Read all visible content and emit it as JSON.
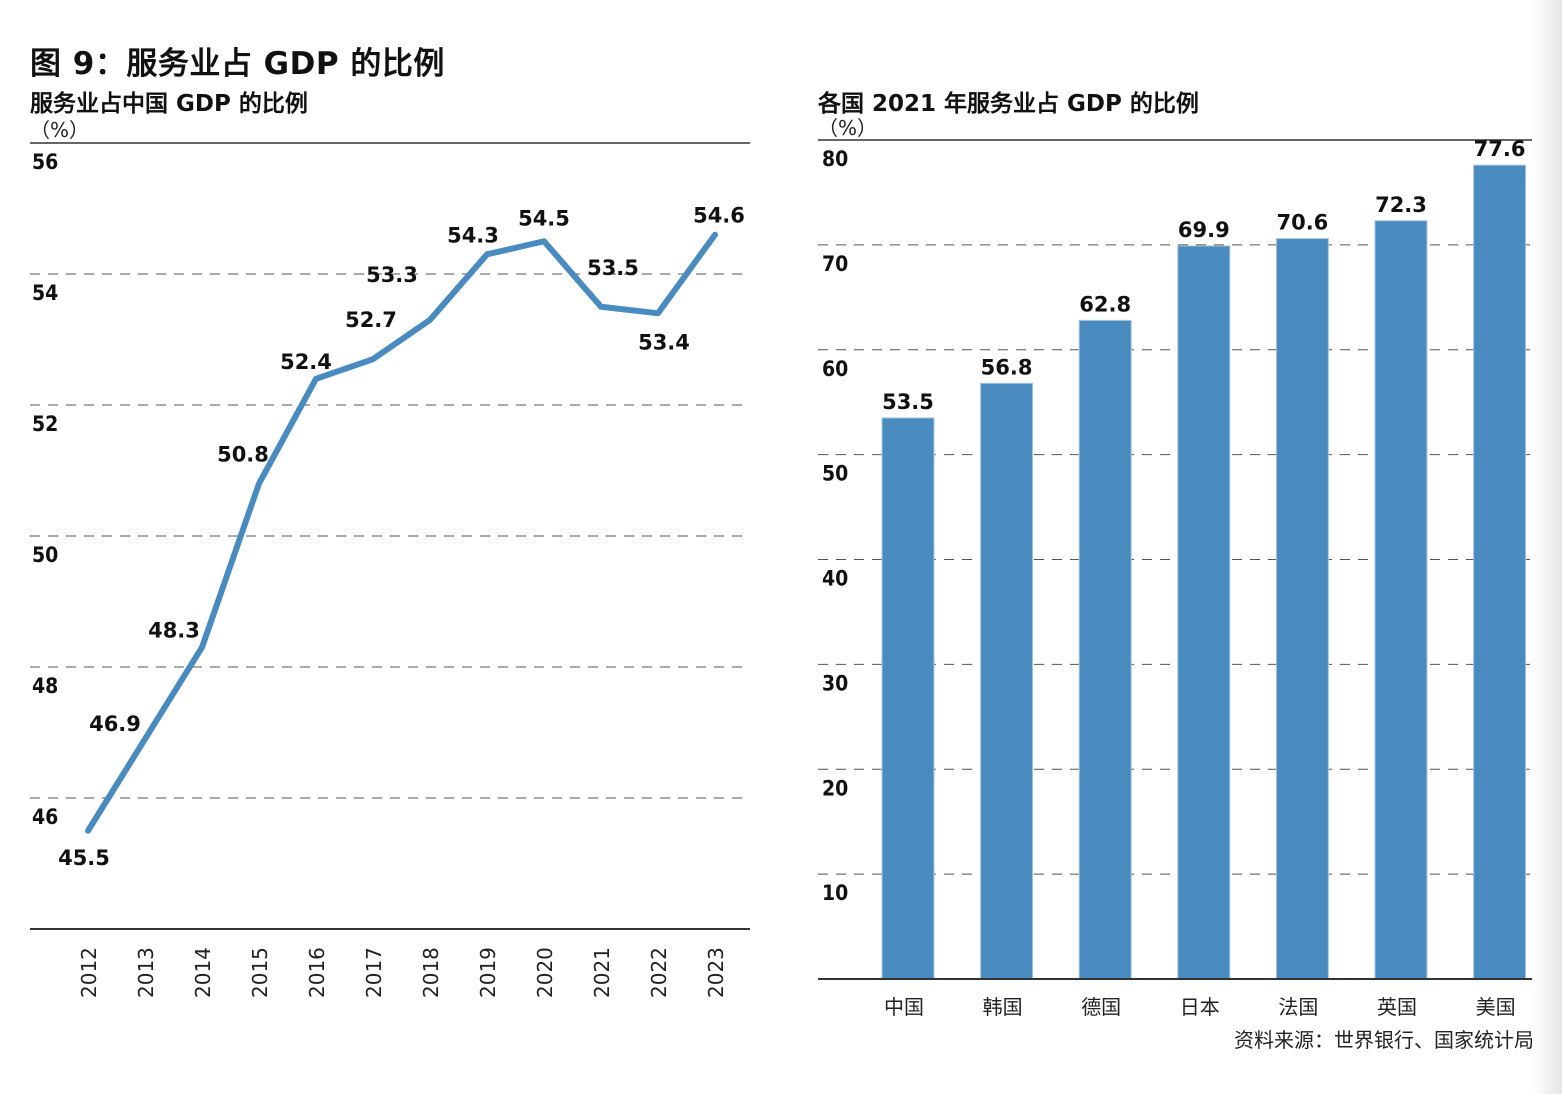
{
  "figure_title": "图 9：服务业占 GDP 的比例",
  "source": "资料来源：世界银行、国家统计局",
  "colors": {
    "series": "#4a8bbf",
    "grid": "#555555",
    "axis": "#333333"
  },
  "chart_data": [
    {
      "type": "line",
      "title": "服务业占中国 GDP 的比例",
      "ylabel": "（%）",
      "xlabel": "",
      "x": [
        "2012",
        "2013",
        "2014",
        "2015",
        "2016",
        "2017",
        "2018",
        "2019",
        "2020",
        "2021",
        "2022",
        "2023"
      ],
      "series": [
        {
          "name": "服务业占中国 GDP 的比例",
          "values": [
            45.5,
            46.9,
            48.3,
            50.8,
            52.4,
            52.7,
            53.3,
            54.3,
            54.5,
            53.5,
            53.4,
            54.6
          ]
        }
      ],
      "data_labels": [
        "45.5",
        "46.9",
        "48.3",
        "50.8",
        "52.4",
        "52.7",
        "53.3",
        "54.3",
        "54.5",
        "53.5",
        "53.4",
        "54.6"
      ],
      "yticks": [
        46,
        48,
        50,
        52,
        54,
        56
      ],
      "ytick_labels": [
        "46",
        "48",
        "50",
        "52",
        "54",
        "56"
      ],
      "ylim": [
        44,
        56
      ],
      "grid": true,
      "legend": "none"
    },
    {
      "type": "bar",
      "title": "各国 2021 年服务业占 GDP 的比例",
      "ylabel": "（%）",
      "xlabel": "",
      "categories": [
        "中国",
        "韩国",
        "德国",
        "日本",
        "法国",
        "英国",
        "美国"
      ],
      "values": [
        53.5,
        56.8,
        62.8,
        69.9,
        70.6,
        72.3,
        77.6
      ],
      "data_labels": [
        "53.5",
        "56.8",
        "62.8",
        "69.9",
        "70.6",
        "72.3",
        "77.6"
      ],
      "yticks": [
        10,
        20,
        30,
        40,
        50,
        60,
        70,
        80
      ],
      "ytick_labels": [
        "10",
        "20",
        "30",
        "40",
        "50",
        "60",
        "70",
        "80"
      ],
      "ylim": [
        0,
        80
      ],
      "grid": true,
      "legend": "none"
    }
  ]
}
